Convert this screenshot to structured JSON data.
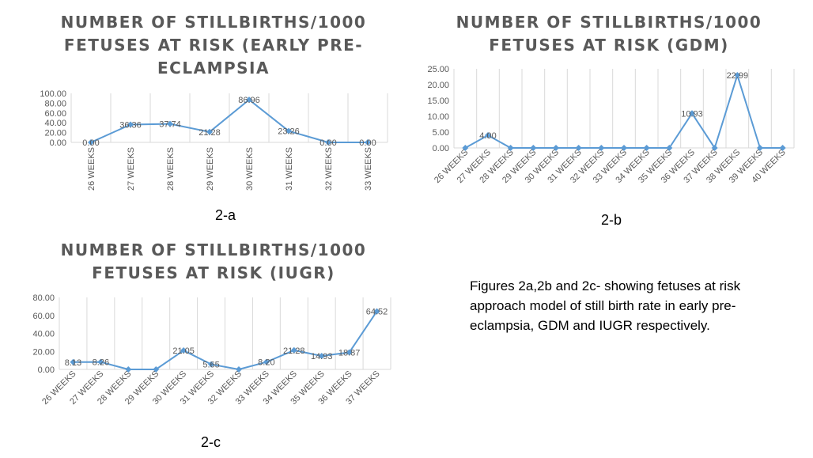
{
  "chart_data": [
    {
      "type": "line",
      "title": "NUMBER OF STILLBIRTHS/1000 FETUSES AT RISK (EARLY PRE-ECLAMPSIA",
      "categories": [
        "26 WEEKS",
        "27 WEEKS",
        "28 WEEKS",
        "29 WEEKS",
        "30 WEEKS",
        "31 WEEKS",
        "32 WEEKS",
        "33 WEEKS"
      ],
      "values": [
        0.0,
        36.36,
        37.74,
        21.28,
        86.96,
        23.26,
        0.0,
        0.0
      ],
      "data_labels": [
        "0.00",
        "36.36",
        "37.74",
        "21.28",
        "86.96",
        "23.26",
        "0.00",
        "0.00"
      ],
      "y_ticks": [
        "0.00",
        "20.00",
        "40.00",
        "60.00",
        "80.00",
        "100.00"
      ],
      "ylim": [
        0,
        100
      ],
      "grid": "vertical",
      "color": "#5B9BD5",
      "panel_label": "2-a"
    },
    {
      "type": "line",
      "title": "NUMBER OF STILLBIRTHS/1000 FETUSES AT RISK (GDM)",
      "categories": [
        "26 WEEKS",
        "27 WEEKS",
        "28 WEEKS",
        "29 WEEKS",
        "30 WEEKS",
        "31 WEEKS",
        "32 WEEKS",
        "33 WEEKS",
        "34 WEEKS",
        "35 WEEKS",
        "36 WEEKS",
        "37 WEEKS",
        "38 WEEKS",
        "39 WEEKS",
        "40 WEEKS"
      ],
      "values": [
        0,
        4.0,
        0,
        0,
        0,
        0,
        0,
        0,
        0,
        0,
        10.93,
        0,
        22.99,
        0,
        0
      ],
      "data_labels": [
        "",
        "4.00",
        "",
        "",
        "",
        "",
        "",
        "",
        "",
        "",
        "10.93",
        "",
        "22.99",
        "",
        ""
      ],
      "y_ticks": [
        "0.00",
        "5.00",
        "10.00",
        "15.00",
        "20.00",
        "25.00"
      ],
      "ylim": [
        0,
        25
      ],
      "grid": "vertical",
      "color": "#5B9BD5",
      "panel_label": "2-b"
    },
    {
      "type": "line",
      "title": "NUMBER OF STILLBIRTHS/1000 FETUSES AT RISK (IUGR)",
      "categories": [
        "26 WEEKS",
        "27 WEEKS",
        "28 WEEKS",
        "29 WEEKS",
        "30 WEEKS",
        "31 WEEKS",
        "32 WEEKS",
        "33 WEEKS",
        "34 WEEKS",
        "35 WEEKS",
        "36 WEEKS",
        "37 WEEKS"
      ],
      "values": [
        8.13,
        8.26,
        0,
        0,
        21.05,
        5.65,
        0,
        8.2,
        21.28,
        14.93,
        18.87,
        64.52
      ],
      "data_labels": [
        "8.13",
        "8.26",
        "",
        "",
        "21.05",
        "5.65",
        "",
        "8.20",
        "21.28",
        "14.93",
        "18.87",
        "64.52"
      ],
      "y_ticks": [
        "0.00",
        "20.00",
        "40.00",
        "60.00",
        "80.00"
      ],
      "ylim": [
        0,
        80
      ],
      "grid": "vertical",
      "color": "#5B9BD5",
      "panel_label": "2-c"
    }
  ],
  "titles": {
    "a_line1": "NUMBER OF STILLBIRTHS/1000",
    "a_line2": "FETUSES AT RISK (EARLY PRE-",
    "a_line3": "ECLAMPSIA",
    "b_line1": "NUMBER OF STILLBIRTHS/1000",
    "b_line2": "FETUSES AT RISK (GDM)",
    "c_line1": "NUMBER OF STILLBIRTHS/1000",
    "c_line2": "FETUSES AT RISK (IUGR)"
  },
  "caption": {
    "line1": "Figures 2a,2b and 2c- showing fetuses at risk",
    "line2": "approach model of still birth rate in early pre-",
    "line3": "eclampsia, GDM and IUGR respectively."
  }
}
